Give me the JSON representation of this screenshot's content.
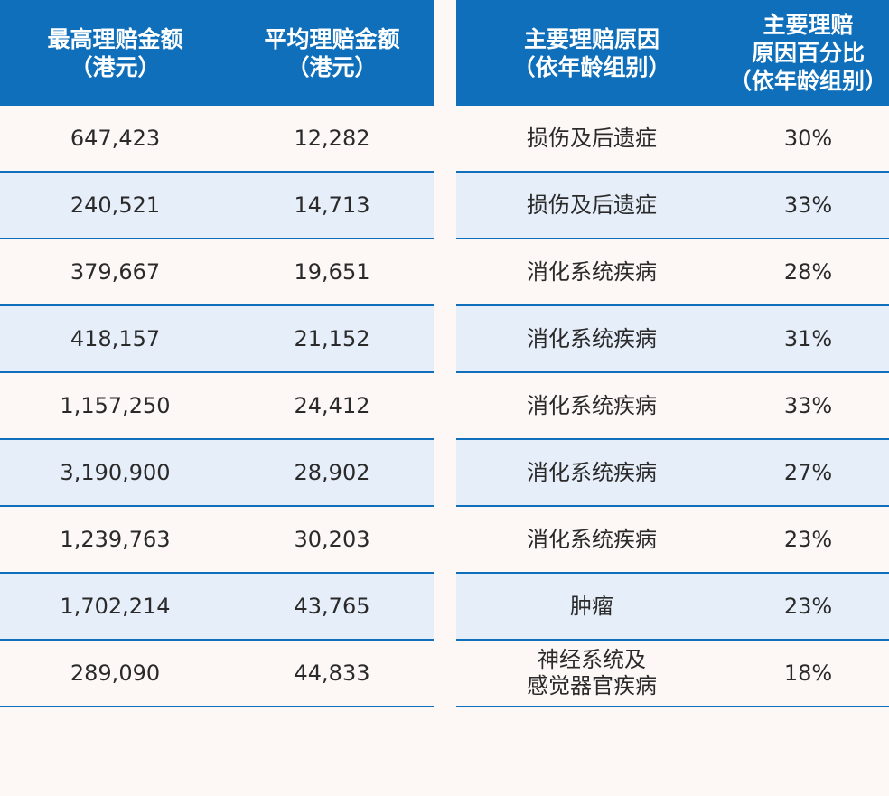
{
  "left_table": {
    "headers": [
      "最高理赔金额\n（港元）",
      "平均理赔金额\n（港元）"
    ],
    "rows": [
      [
        "647,423",
        "12,282"
      ],
      [
        "240,521",
        "14,713"
      ],
      [
        "379,667",
        "19,651"
      ],
      [
        "418,157",
        "21,152"
      ],
      [
        "1,157,250",
        "24,412"
      ],
      [
        "3,190,900",
        "28,902"
      ],
      [
        "1,239,763",
        "30,203"
      ],
      [
        "1,702,214",
        "43,765"
      ],
      [
        "289,090",
        "44,833"
      ]
    ]
  },
  "right_table": {
    "headers": [
      "主要理赔原因\n（依年龄组别）",
      "主要理赔\n原因百分比\n（依年龄组别）"
    ],
    "rows": [
      [
        "损伤及后遗症",
        "30%"
      ],
      [
        "损伤及后遗症",
        "33%"
      ],
      [
        "消化系统疾病",
        "28%"
      ],
      [
        "消化系统疾病",
        "31%"
      ],
      [
        "消化系统疾病",
        "33%"
      ],
      [
        "消化系统疾病",
        "27%"
      ],
      [
        "消化系统疾病",
        "23%"
      ],
      [
        "肿瘤",
        "23%"
      ],
      [
        "神经系统及\n感觉器官疾病",
        "18%"
      ]
    ]
  },
  "colors": {
    "header_bg": "#0f6fba",
    "shaded_row": "#e6eef9",
    "page_bg": "#fdf7f6"
  }
}
